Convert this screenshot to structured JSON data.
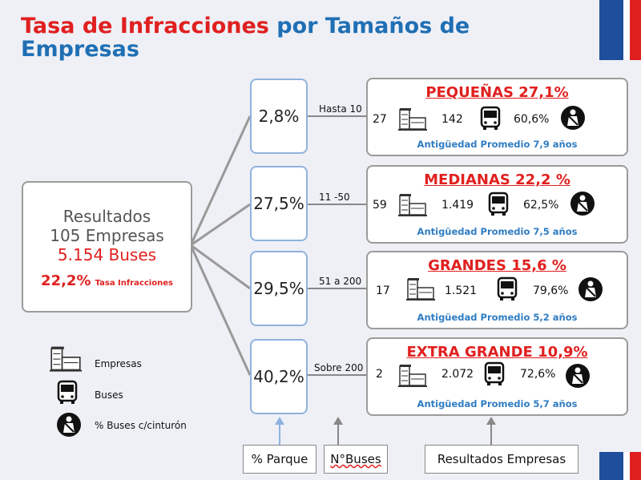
{
  "title": {
    "red": "Tasa de Infracciones",
    "blue_1": "por Tamaños de",
    "blue_2": "Empresas"
  },
  "summary": {
    "line1": "Resultados",
    "line2": "105 Empresas",
    "line3": "5.154 Buses",
    "rate": "22,2%",
    "rate_label": "Tasa Infracciones"
  },
  "categories": [
    {
      "title": "PEQUEÑAS 27,1%",
      "pct": "2,8%",
      "range": "Hasta 10",
      "companies": "27",
      "buses": "142",
      "belt": "60,6%",
      "age": "Antigüedad Promedio 7,9 años"
    },
    {
      "title": "MEDIANAS 22,2 %",
      "pct": "27,5%",
      "range": "11 -50",
      "companies": "59",
      "buses": "1.419",
      "belt": "62,5%",
      "age": "Antigüedad Promedio 7,5 años"
    },
    {
      "title": "GRANDES 15,6 %",
      "pct": "29,5%",
      "range": "51 a 200",
      "companies": "17",
      "buses": "1.521",
      "belt": "79,6%",
      "age": "Antigüedad Promedio 5,2 años"
    },
    {
      "title": "EXTRA GRANDE 10,9%",
      "pct": "40,2%",
      "range": "Sobre 200",
      "companies": "2",
      "buses": "2.072",
      "belt": "72,6%",
      "age": "Antigüedad Promedio 5,7 años"
    }
  ],
  "legend": {
    "companies": "Empresas",
    "buses": "Buses",
    "belt": "% Buses c/cinturón"
  },
  "bottom": {
    "parque": "% Parque",
    "buses": "N°Buses",
    "empresas": "Resultados Empresas"
  },
  "icons": {
    "company": "building-icon",
    "bus": "bus-icon",
    "belt": "seatbelt-icon"
  },
  "colors": {
    "red": "#e0201f",
    "blue": "#1f6fb4",
    "age_blue": "#2f7cc2",
    "flag_blue": "#1f4e9c"
  }
}
